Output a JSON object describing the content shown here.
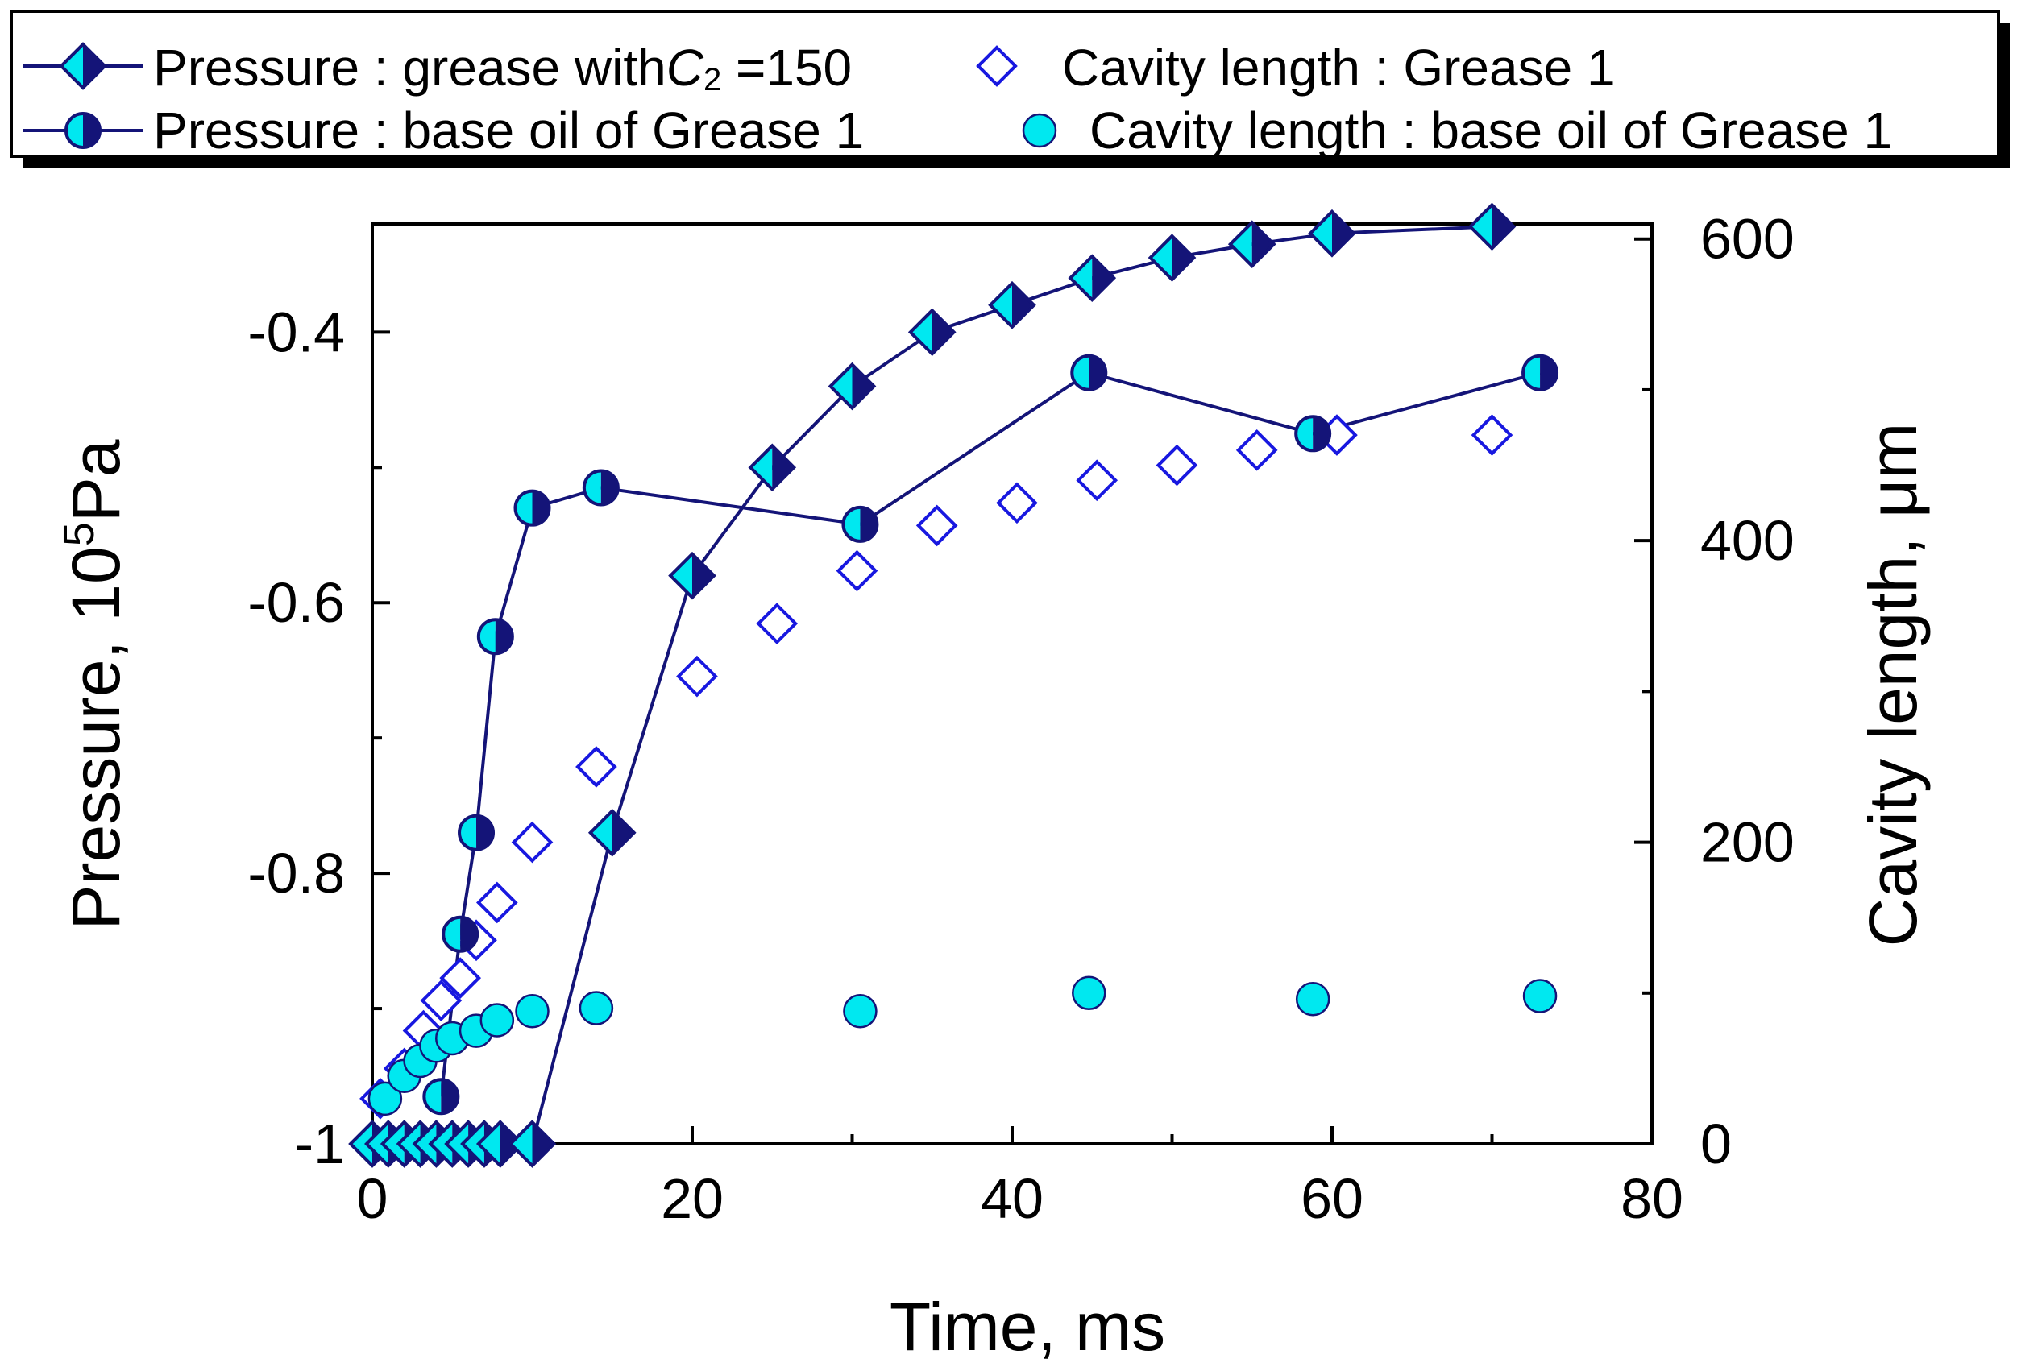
{
  "chart_data": {
    "type": "line",
    "xlabel": "Time, ms",
    "ylabel_left": "Pressure, 10",
    "ylabel_left_sup": "5",
    "ylabel_left_tail": "Pa",
    "ylabel_right": "Cavity length, μm",
    "xlim": [
      0,
      80
    ],
    "ylim_left": [
      -1,
      -0.32
    ],
    "ylim_right": [
      0,
      610
    ],
    "x_ticks": [
      0,
      20,
      40,
      60,
      80
    ],
    "x_tick_labels": [
      "0",
      "20",
      "40",
      "60",
      "80"
    ],
    "y_left_ticks": [
      -1,
      -0.8,
      -0.6,
      -0.4
    ],
    "y_left_tick_labels": [
      "-1",
      "-0.8",
      "-0.6",
      "-0.4"
    ],
    "y_right_ticks": [
      0,
      200,
      400,
      600
    ],
    "y_right_tick_labels": [
      "0",
      "200",
      "400",
      "600"
    ],
    "legend_position": "top",
    "colors": {
      "navy": "#141478",
      "blue": "#1818e0",
      "cyan": "#00e8f0",
      "axis": "#000000"
    },
    "series": [
      {
        "name": "Pressure : grease with",
        "name_c": "C",
        "name_sub": "2",
        "name_tail": " =150",
        "axis": "left",
        "marker": "half-diamond",
        "line": true,
        "x": [
          0,
          1,
          2,
          3,
          4,
          5,
          6,
          7,
          8,
          10,
          15,
          20,
          25,
          30,
          35,
          40,
          45,
          50,
          55,
          60,
          70
        ],
        "y": [
          -1,
          -1,
          -1,
          -1,
          -1,
          -1,
          -1,
          -1,
          -1,
          -1,
          -0.77,
          -0.58,
          -0.5,
          -0.44,
          -0.4,
          -0.38,
          -0.36,
          -0.345,
          -0.335,
          -0.327,
          -0.322
        ]
      },
      {
        "name": "Pressure : base oil of Grease 1",
        "axis": "left",
        "marker": "half-circle",
        "line": true,
        "x": [
          4.3,
          5.5,
          6.5,
          7.7,
          10,
          14.3,
          30.5,
          44.8,
          58.8,
          73
        ],
        "y": [
          -0.965,
          -0.845,
          -0.77,
          -0.625,
          -0.53,
          -0.515,
          -0.542,
          -0.43,
          -0.475,
          -0.43
        ]
      },
      {
        "name": "Cavity length : Grease 1",
        "axis": "right",
        "marker": "open-diamond",
        "line": false,
        "x": [
          0.5,
          2,
          3.2,
          4.3,
          5.5,
          6.5,
          7.8,
          10,
          14,
          20.3,
          25.3,
          30.3,
          35.3,
          40.3,
          45.3,
          50.3,
          55.3,
          60.3,
          70
        ],
        "y": [
          30,
          50,
          75,
          95,
          110,
          135,
          160,
          200,
          250,
          310,
          345,
          380,
          410,
          425,
          440,
          450,
          460,
          470,
          470
        ]
      },
      {
        "name": "Cavity length : base oil of Grease 1",
        "axis": "right",
        "marker": "filled-circle",
        "line": false,
        "x": [
          0.8,
          2,
          3,
          4,
          5,
          6.5,
          7.8,
          10,
          14,
          30.5,
          44.8,
          58.8,
          73
        ],
        "y": [
          30,
          45,
          55,
          65,
          70,
          75,
          82,
          88,
          90,
          88,
          100,
          96,
          98
        ]
      }
    ]
  }
}
